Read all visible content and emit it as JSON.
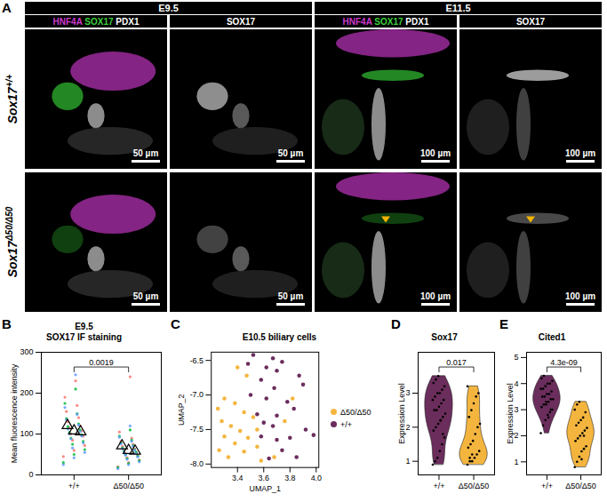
{
  "image_panel": {
    "label": "A",
    "stages": [
      "E9.5",
      "E11.5"
    ],
    "columns": [
      {
        "stage": 0,
        "channels": [
          {
            "text": "HNF4A",
            "color": "#cc3acc"
          },
          {
            "text": "SOX17",
            "color": "#3ccf3c"
          },
          {
            "text": "PDX1",
            "color": "#ffffff"
          }
        ],
        "scale_bar": "50 µm"
      },
      {
        "stage": 0,
        "channels": [
          {
            "text": "SOX17",
            "color": "#ffffff"
          }
        ],
        "scale_bar": "50 µm"
      },
      {
        "stage": 1,
        "channels": [
          {
            "text": "HNF4A",
            "color": "#cc3acc"
          },
          {
            "text": "SOX17",
            "color": "#3ccf3c"
          },
          {
            "text": "PDX1",
            "color": "#ffffff"
          }
        ],
        "scale_bar": "100 µm"
      },
      {
        "stage": 1,
        "channels": [
          {
            "text": "SOX17",
            "color": "#ffffff"
          }
        ],
        "scale_bar": "100 µm"
      }
    ],
    "rows": [
      {
        "gene": "Sox17",
        "genotype": "+/+",
        "arrowheads": []
      },
      {
        "gene": "Sox17",
        "genotype": "Δ50/Δ50",
        "arrowheads": [
          2,
          3
        ]
      }
    ]
  },
  "chart_data": [
    {
      "label": "B",
      "type": "strip",
      "title": "E9.5",
      "subtitle": "SOX17 IF staining",
      "y_label": "Mean fluorescence intensity",
      "categories": [
        "+/+",
        "Δ50/Δ50"
      ],
      "ylim": [
        0,
        300
      ],
      "yticks": [
        0,
        100,
        200,
        300
      ],
      "series": [
        {
          "color": "#f8766d",
          "values": [
            [
              45,
              60,
              72,
              85,
              95,
              100,
              108,
              115,
              120,
              130,
              140,
              155,
              170,
              190,
              230
            ],
            [
              20,
              30,
              36,
              42,
              48,
              52,
              56,
              60,
              64,
              70,
              75,
              82,
              90,
              105,
              240
            ]
          ],
          "means": [
            121,
            71.3
          ]
        },
        {
          "color": "#00ba38",
          "values": [
            [
              30,
              50,
              62,
              75,
              82,
              90,
              98,
              104,
              110,
              118,
              125,
              138,
              150,
              175,
              210
            ],
            [
              18,
              28,
              35,
              40,
              46,
              50,
              55,
              58,
              62,
              66,
              72,
              78,
              85,
              95,
              110
            ]
          ],
          "means": [
            107.8,
            59.9
          ]
        },
        {
          "color": "#619cff",
          "values": [
            [
              25,
              42,
              55,
              66,
              78,
              88,
              95,
              100,
              106,
              112,
              122,
              135,
              148,
              165,
              245
            ],
            [
              15,
              25,
              32,
              38,
              44,
              48,
              52,
              56,
              60,
              64,
              70,
              76,
              82,
              92,
              120
            ]
          ],
          "means": [
            105.5,
            58.3
          ]
        }
      ],
      "annotations": [
        {
          "text": "0.0019"
        }
      ]
    },
    {
      "label": "C",
      "type": "scatter",
      "title": "E10.5 biliary cells",
      "x_label": "UMAP_1",
      "y_label": "UMAP_2",
      "xlim": [
        3.2,
        4.02
      ],
      "xticks": [
        3.4,
        3.6,
        3.8,
        {
          "value": 4,
          "label": "4.0"
        }
      ],
      "ylim": [
        -8.05,
        -6.38
      ],
      "yticks": [
        {
          "value": -8,
          "label": "-8.0"
        },
        -7.5,
        {
          "value": -7,
          "label": "-7.0"
        },
        -6.5
      ],
      "legend": "right",
      "series": [
        {
          "name": "Δ50/Δ50",
          "color": "#f4b53f",
          "x": [
            3.3,
            3.38,
            3.25,
            3.45,
            3.52,
            3.28,
            3.35,
            3.42,
            3.3,
            3.48,
            3.38,
            3.26,
            3.45,
            3.55,
            3.33,
            3.58,
            3.68,
            3.55,
            3.4,
            3.82,
            3.76,
            3.47
          ],
          "y": [
            -7.05,
            -7.12,
            -7.2,
            -7.25,
            -7.32,
            -7.38,
            -7.45,
            -7.52,
            -7.6,
            -7.62,
            -7.7,
            -7.8,
            -7.82,
            -7.75,
            -7.9,
            -7.95,
            -7.9,
            -7.5,
            -6.6,
            -7.05,
            -7.38,
            -6.72
          ]
        },
        {
          "name": "+/+",
          "color": "#6b2d5c",
          "x": [
            3.52,
            3.67,
            3.74,
            3.48,
            3.62,
            3.7,
            3.87,
            3.58,
            3.9,
            3.68,
            3.5,
            3.62,
            3.78,
            3.83,
            3.55,
            3.7,
            3.6,
            3.67,
            3.92,
            3.58,
            3.7,
            3.8,
            3.74,
            3.85,
            3.64,
            3.98
          ],
          "y": [
            -6.42,
            -6.47,
            -6.52,
            -6.55,
            -6.6,
            -6.65,
            -6.72,
            -6.78,
            -6.85,
            -6.9,
            -7.0,
            -7.05,
            -7.1,
            -7.2,
            -7.28,
            -7.3,
            -7.4,
            -7.45,
            -7.5,
            -7.6,
            -7.65,
            -7.62,
            -7.8,
            -7.9,
            -7.92,
            -7.58
          ]
        }
      ]
    },
    {
      "label": "D",
      "type": "violin",
      "title": "Sox17",
      "y_label": "Expression Level",
      "categories": [
        "+/+",
        "Δ50/Δ50"
      ],
      "colors": [
        "#6b2d5c",
        "#f4b53f"
      ],
      "ylim": [
        0.6,
        4.2
      ],
      "yticks": [
        1,
        2,
        3
      ],
      "values": [
        [
          0.9,
          1.0,
          1.1,
          1.3,
          1.5,
          1.7,
          1.9,
          2.0,
          2.1,
          2.2,
          2.3,
          2.4,
          2.5,
          2.5,
          2.6,
          2.7,
          2.8,
          2.8,
          2.9,
          3.0,
          3.0,
          3.1,
          3.2,
          3.3,
          3.4,
          3.5,
          2.2,
          1.8
        ],
        [
          0.9,
          1.0,
          1.0,
          1.1,
          1.2,
          1.3,
          1.4,
          1.5,
          1.6,
          1.8,
          2.0,
          2.1,
          2.3,
          2.5,
          2.7,
          2.9,
          3.0,
          3.2,
          1.1,
          1.2
        ]
      ],
      "annotations": [
        {
          "text": "0.017"
        }
      ]
    },
    {
      "label": "E",
      "type": "violin",
      "title": "Cited1",
      "y_label": "Expression Level",
      "categories": [
        "+/+",
        "Δ50/Δ50"
      ],
      "colors": [
        "#6b2d5c",
        "#f4b53f"
      ],
      "ylim": [
        0.5,
        5.2
      ],
      "yticks": [
        1,
        2,
        3,
        4,
        5
      ],
      "values": [
        [
          2.1,
          2.4,
          2.6,
          2.8,
          2.9,
          3.0,
          3.1,
          3.2,
          3.2,
          3.3,
          3.4,
          3.4,
          3.5,
          3.5,
          3.6,
          3.6,
          3.7,
          3.8,
          3.8,
          3.9,
          4.0,
          4.0,
          4.1,
          4.2,
          4.3,
          3.3,
          2.7,
          3.0
        ],
        [
          0.8,
          1.0,
          1.2,
          1.4,
          1.5,
          1.6,
          1.8,
          1.9,
          2.0,
          2.1,
          2.2,
          2.3,
          2.4,
          2.5,
          2.6,
          2.7,
          2.9,
          3.0,
          3.2,
          3.3,
          1.1,
          2.0
        ]
      ],
      "annotations": [
        {
          "text": "4.3e-09"
        }
      ]
    }
  ]
}
